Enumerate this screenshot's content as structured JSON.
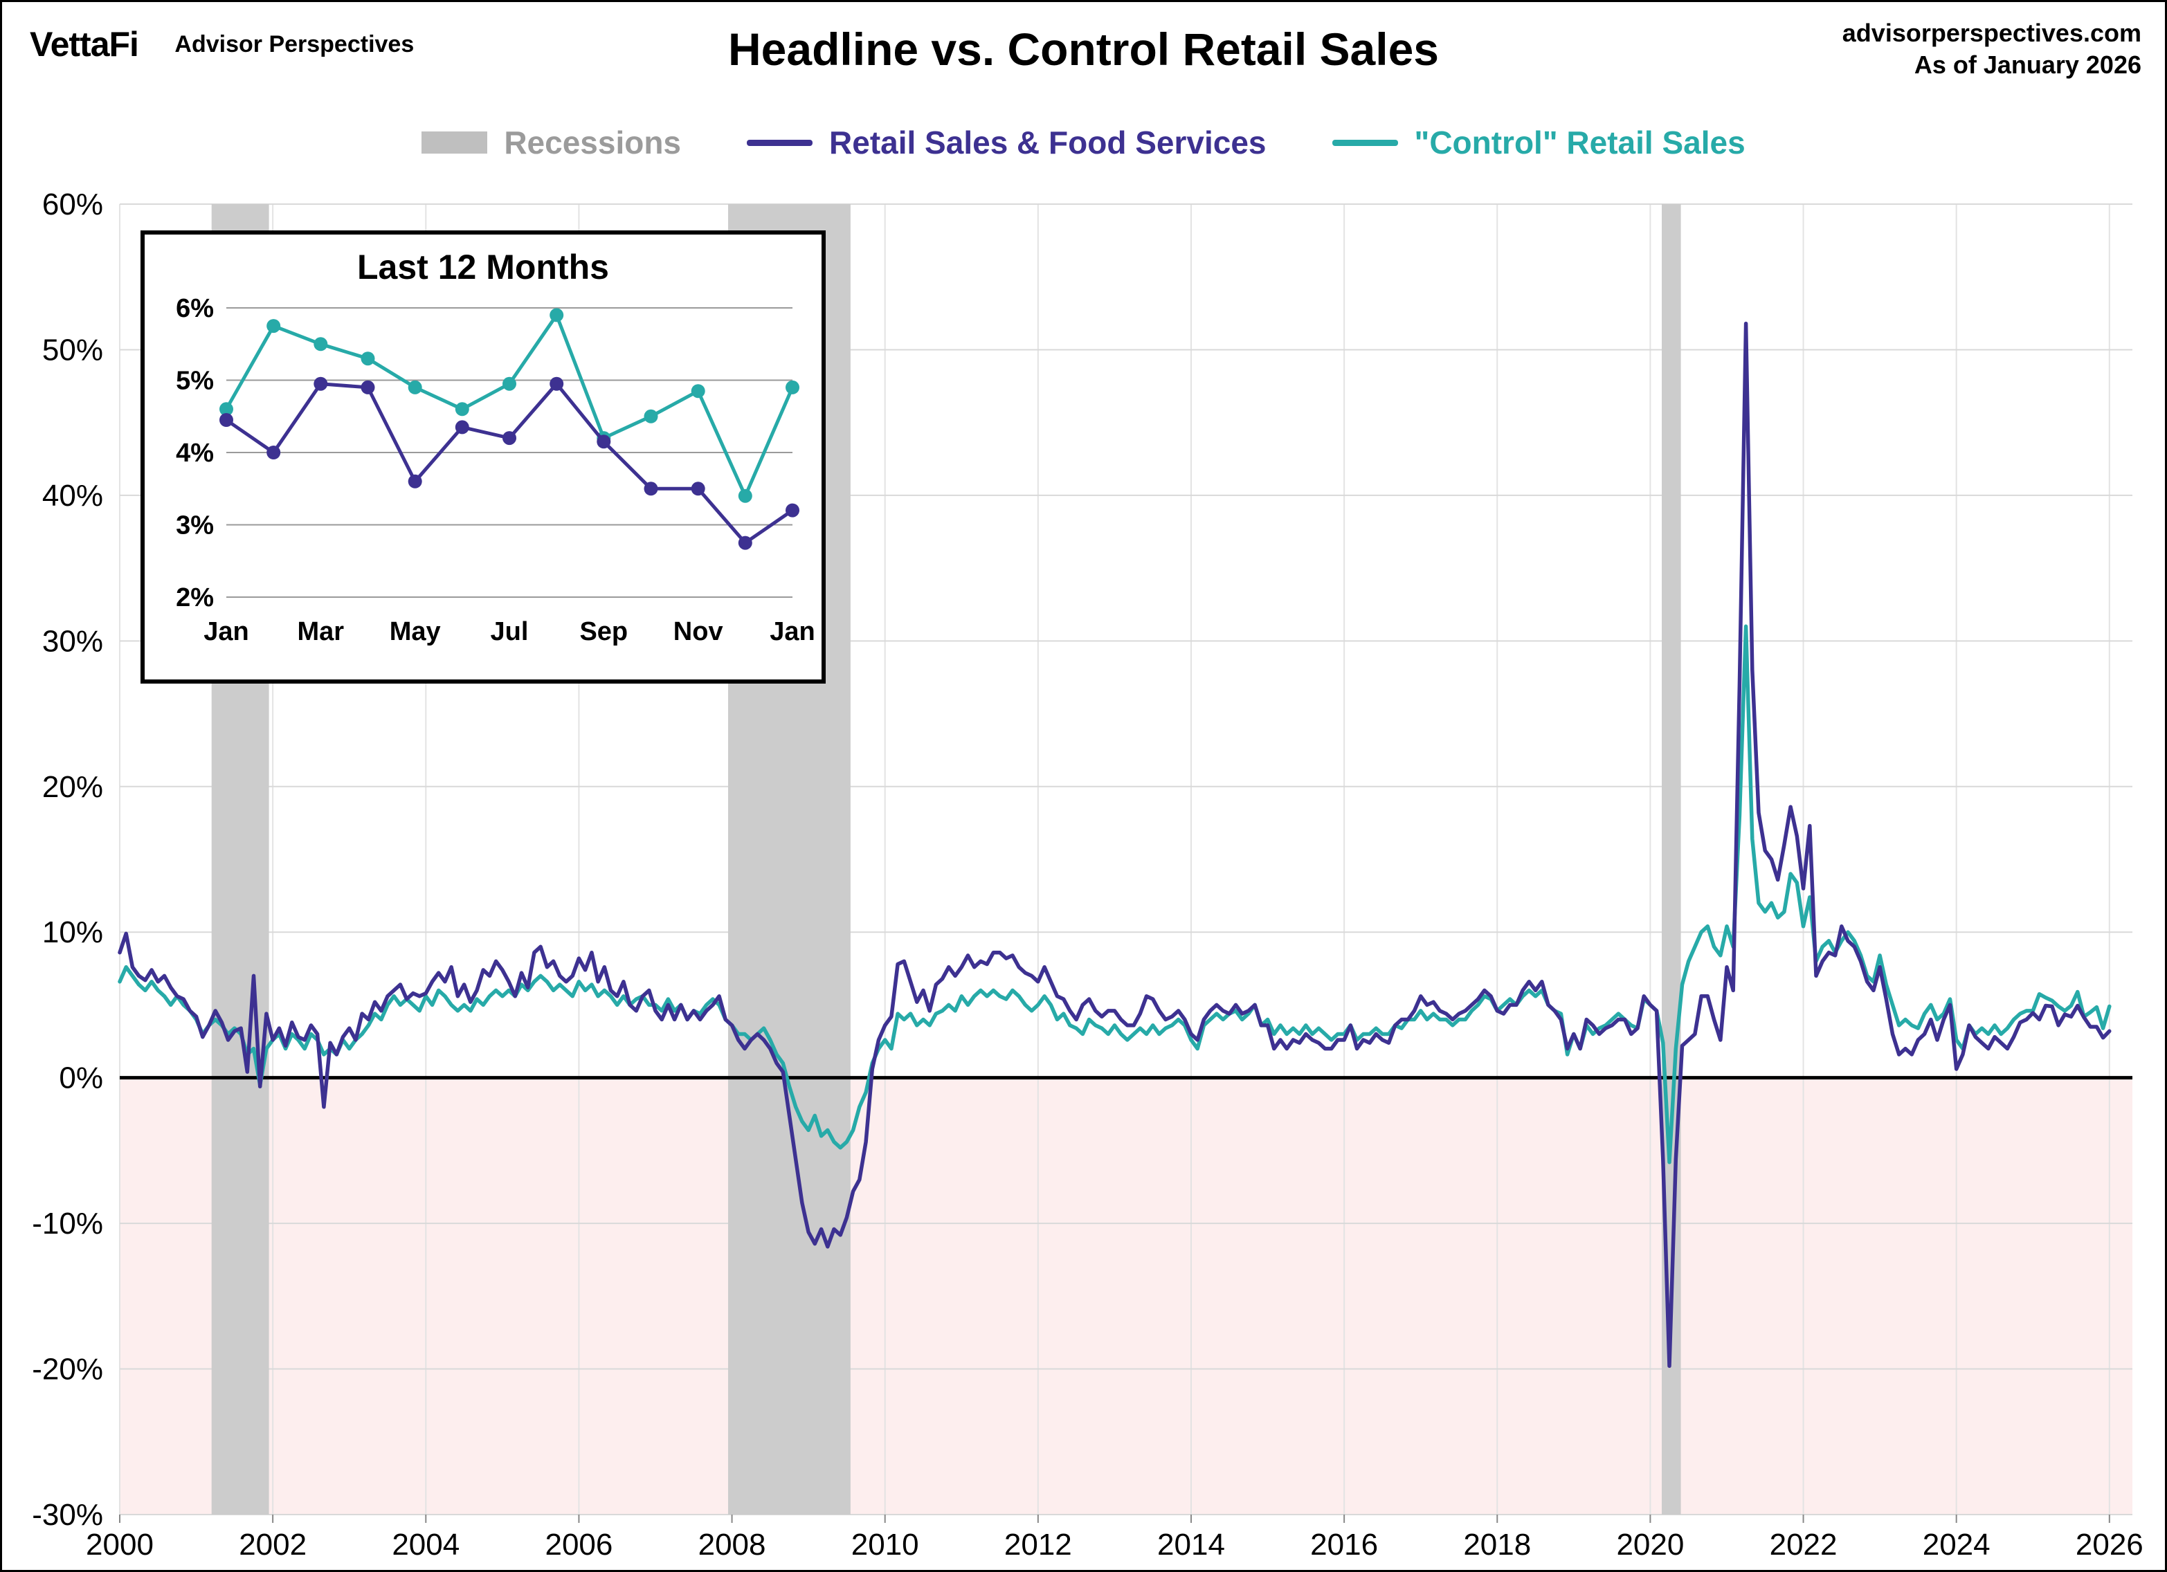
{
  "header": {
    "logo": "VettaFi",
    "logo_sub": "Advisor Perspectives",
    "title": "Headline vs. Control Retail Sales",
    "site": "advisorperspectives.com",
    "as_of": "As of January 2026"
  },
  "legend": {
    "recessions": "Recessions",
    "headline": "Retail Sales & Food Services",
    "control": "\"Control\" Retail Sales"
  },
  "colors": {
    "headline": "#3d3191",
    "control": "#27aaa8",
    "recession": "#cccccc",
    "recession_swatch": "#bfbfbf",
    "legend_gray": "#9b9b9b",
    "below_zero_fill": "#fdeeee",
    "grid": "#d9d9d9",
    "vgrid": "#e3e3e3",
    "zero_line": "#000000"
  },
  "chart_data": [
    {
      "type": "line",
      "title": "Headline vs. Control Retail Sales",
      "x_start": 2000,
      "x_step_months": 1,
      "xlim": [
        2000,
        2026.3
      ],
      "ylim": [
        -30,
        60
      ],
      "y_ticks": [
        -30,
        -20,
        -10,
        0,
        10,
        20,
        30,
        40,
        50,
        60
      ],
      "x_ticks": [
        2000,
        2002,
        2004,
        2006,
        2008,
        2010,
        2012,
        2014,
        2016,
        2018,
        2020,
        2022,
        2024,
        2026
      ],
      "recessions": [
        [
          2001.2,
          2001.95
        ],
        [
          2007.95,
          2009.55
        ],
        [
          2020.15,
          2020.4
        ]
      ],
      "series": [
        {
          "name": "Retail Sales & Food Services",
          "color": "#3d3191",
          "values": [
            8.6,
            9.9,
            7.6,
            7.0,
            6.7,
            7.4,
            6.6,
            7.0,
            6.2,
            5.6,
            5.4,
            4.6,
            4.2,
            2.8,
            3.6,
            4.6,
            3.8,
            2.6,
            3.2,
            3.4,
            0.4,
            7.0,
            -0.6,
            4.4,
            2.6,
            3.4,
            2.2,
            3.8,
            2.8,
            2.6,
            3.6,
            3.0,
            -2.0,
            2.4,
            1.6,
            2.8,
            3.4,
            2.6,
            4.4,
            4.0,
            5.2,
            4.6,
            5.6,
            6.0,
            6.4,
            5.4,
            5.8,
            5.6,
            5.8,
            6.6,
            7.2,
            6.6,
            7.6,
            5.6,
            6.4,
            5.2,
            6.0,
            7.4,
            7.0,
            8.0,
            7.4,
            6.6,
            5.6,
            7.2,
            6.2,
            8.6,
            9.0,
            7.6,
            8.0,
            7.0,
            6.6,
            7.0,
            8.2,
            7.4,
            8.6,
            6.6,
            7.6,
            6.0,
            5.6,
            6.6,
            5.0,
            4.6,
            5.6,
            6.0,
            4.6,
            4.0,
            5.0,
            4.0,
            5.0,
            4.0,
            4.6,
            4.0,
            4.6,
            5.0,
            5.6,
            4.0,
            3.6,
            2.6,
            2.0,
            2.6,
            3.0,
            2.6,
            2.0,
            1.0,
            0.4,
            -2.6,
            -5.6,
            -8.6,
            -10.6,
            -11.4,
            -10.4,
            -11.6,
            -10.4,
            -10.8,
            -9.6,
            -7.8,
            -7.0,
            -4.4,
            0.6,
            2.6,
            3.6,
            4.2,
            7.8,
            8.0,
            6.6,
            5.2,
            6.0,
            4.6,
            6.4,
            6.8,
            7.6,
            7.0,
            7.6,
            8.4,
            7.6,
            8.0,
            7.8,
            8.6,
            8.6,
            8.2,
            8.4,
            7.6,
            7.2,
            7.0,
            6.6,
            7.6,
            6.6,
            5.6,
            5.4,
            4.6,
            4.0,
            5.0,
            5.4,
            4.6,
            4.2,
            4.6,
            4.6,
            4.0,
            3.6,
            3.6,
            4.4,
            5.6,
            5.4,
            4.6,
            4.0,
            4.2,
            4.6,
            4.0,
            3.0,
            2.6,
            4.0,
            4.6,
            5.0,
            4.6,
            4.4,
            5.0,
            4.4,
            4.6,
            5.0,
            3.6,
            3.6,
            2.0,
            2.6,
            2.0,
            2.6,
            2.4,
            3.0,
            2.6,
            2.4,
            2.0,
            2.0,
            2.6,
            2.6,
            3.6,
            2.0,
            2.6,
            2.4,
            3.0,
            2.6,
            2.4,
            3.6,
            4.0,
            4.0,
            4.6,
            5.6,
            5.0,
            5.2,
            4.6,
            4.4,
            4.0,
            4.4,
            4.6,
            5.0,
            5.4,
            6.0,
            5.6,
            4.6,
            4.4,
            5.0,
            5.0,
            6.0,
            6.6,
            6.0,
            6.6,
            5.0,
            4.6,
            4.0,
            2.0,
            3.0,
            2.0,
            4.0,
            3.6,
            3.0,
            3.4,
            3.6,
            4.0,
            4.0,
            3.0,
            3.4,
            5.6,
            5.0,
            4.6,
            -5.6,
            -19.8,
            -5.6,
            2.2,
            2.6,
            3.0,
            5.6,
            5.6,
            4.0,
            2.6,
            7.6,
            6.0,
            27.0,
            51.8,
            28.0,
            18.2,
            15.6,
            15.0,
            13.6,
            16.0,
            18.6,
            16.6,
            13.0,
            17.3,
            7.0,
            8.0,
            8.6,
            8.4,
            10.4,
            9.4,
            9.0,
            8.0,
            6.6,
            6.0,
            7.6,
            5.4,
            3.0,
            1.6,
            2.0,
            1.6,
            2.6,
            3.0,
            4.0,
            2.6,
            4.0,
            5.0,
            0.6,
            1.6,
            3.6,
            2.8,
            2.4,
            2.0,
            2.8,
            2.4,
            2.0,
            2.8,
            3.8,
            4.0,
            4.45,
            4.0,
            4.95,
            4.9,
            3.6,
            4.35,
            4.2,
            4.95,
            4.15,
            3.5,
            3.5,
            2.75,
            3.2
          ]
        },
        {
          "name": "\"Control\" Retail Sales",
          "color": "#27aaa8",
          "values": [
            6.6,
            7.6,
            7.0,
            6.4,
            6.0,
            6.6,
            6.0,
            5.6,
            5.0,
            5.6,
            5.0,
            4.6,
            4.0,
            3.0,
            3.6,
            4.0,
            3.6,
            3.0,
            3.4,
            3.0,
            1.6,
            2.0,
            -0.5,
            2.0,
            2.6,
            3.0,
            2.0,
            3.0,
            2.6,
            2.0,
            3.0,
            2.6,
            1.6,
            2.0,
            1.6,
            2.6,
            2.0,
            2.6,
            3.0,
            3.6,
            4.4,
            4.0,
            5.0,
            5.6,
            5.0,
            5.4,
            5.0,
            4.6,
            5.6,
            5.0,
            6.0,
            5.6,
            5.0,
            4.6,
            5.0,
            4.6,
            5.4,
            5.0,
            5.6,
            6.0,
            5.6,
            6.0,
            5.6,
            6.4,
            6.0,
            6.6,
            7.0,
            6.6,
            6.0,
            6.4,
            6.0,
            5.6,
            6.6,
            6.0,
            6.4,
            5.6,
            6.0,
            5.6,
            5.0,
            5.6,
            5.0,
            5.4,
            5.6,
            5.0,
            5.0,
            4.6,
            5.4,
            4.6,
            5.0,
            4.0,
            4.6,
            4.4,
            5.0,
            5.4,
            5.0,
            4.0,
            3.6,
            3.0,
            3.0,
            2.6,
            3.0,
            3.4,
            2.6,
            1.6,
            1.0,
            -0.6,
            -2.0,
            -3.0,
            -3.6,
            -2.6,
            -4.0,
            -3.6,
            -4.4,
            -4.8,
            -4.4,
            -3.6,
            -2.0,
            -1.0,
            1.0,
            2.0,
            2.6,
            2.0,
            4.4,
            4.0,
            4.4,
            3.6,
            4.0,
            3.6,
            4.4,
            4.6,
            5.0,
            4.6,
            5.6,
            5.0,
            5.6,
            6.0,
            5.6,
            6.0,
            5.6,
            5.4,
            6.0,
            5.6,
            5.0,
            4.6,
            5.0,
            5.6,
            5.0,
            4.0,
            4.4,
            3.6,
            3.4,
            3.0,
            4.0,
            3.6,
            3.4,
            3.0,
            3.6,
            3.0,
            2.6,
            3.0,
            3.4,
            3.0,
            3.6,
            3.0,
            3.4,
            3.6,
            4.0,
            3.6,
            2.6,
            2.0,
            3.6,
            4.0,
            4.4,
            4.0,
            4.4,
            4.6,
            4.0,
            4.4,
            5.0,
            3.6,
            4.0,
            3.0,
            3.6,
            3.0,
            3.4,
            3.0,
            3.6,
            3.0,
            3.4,
            3.0,
            2.6,
            3.0,
            3.0,
            3.6,
            2.6,
            3.0,
            3.0,
            3.4,
            3.0,
            3.0,
            3.6,
            3.4,
            4.0,
            4.0,
            4.6,
            4.0,
            4.4,
            4.0,
            4.0,
            3.6,
            4.0,
            4.0,
            4.6,
            5.0,
            5.6,
            5.4,
            4.6,
            5.0,
            5.4,
            5.0,
            5.6,
            6.0,
            5.6,
            6.0,
            5.0,
            4.6,
            4.4,
            1.6,
            3.0,
            2.0,
            3.6,
            3.0,
            3.4,
            3.6,
            4.0,
            4.4,
            4.0,
            3.6,
            3.4,
            5.4,
            5.0,
            4.6,
            2.4,
            -5.8,
            2.0,
            6.4,
            8.0,
            9.0,
            10.0,
            10.4,
            9.0,
            8.4,
            10.4,
            9.0,
            18.0,
            31.0,
            16.4,
            12.0,
            11.4,
            12.0,
            11.0,
            11.4,
            14.0,
            13.4,
            10.4,
            12.4,
            8.0,
            9.0,
            9.4,
            8.6,
            9.4,
            10.0,
            9.4,
            8.4,
            7.0,
            6.6,
            8.4,
            6.4,
            5.0,
            3.6,
            4.0,
            3.6,
            3.4,
            4.4,
            5.0,
            4.0,
            4.4,
            5.4,
            2.6,
            2.0,
            3.6,
            3.0,
            3.4,
            3.0,
            3.6,
            3.0,
            3.4,
            4.0,
            4.4,
            4.6,
            4.6,
            5.75,
            5.5,
            5.3,
            4.9,
            4.6,
            4.95,
            5.9,
            4.2,
            4.5,
            4.85,
            3.4,
            4.9
          ]
        }
      ]
    },
    {
      "type": "line",
      "title": "Last 12 Months",
      "x_labels": [
        "Jan",
        "Mar",
        "May",
        "Jul",
        "Sep",
        "Nov",
        "Jan"
      ],
      "ylim": [
        2,
        6
      ],
      "y_ticks": [
        2,
        3,
        4,
        5,
        6
      ],
      "series": [
        {
          "name": "Retail Sales & Food Services",
          "color": "#3d3191",
          "values": [
            4.45,
            4.0,
            4.95,
            4.9,
            3.6,
            4.35,
            4.2,
            4.95,
            4.15,
            3.5,
            3.5,
            2.75,
            3.2
          ]
        },
        {
          "name": "\"Control\" Retail Sales",
          "color": "#27aaa8",
          "values": [
            4.6,
            5.75,
            5.5,
            5.3,
            4.9,
            4.6,
            4.95,
            5.9,
            4.2,
            4.5,
            4.85,
            3.4,
            4.9
          ]
        }
      ]
    }
  ]
}
